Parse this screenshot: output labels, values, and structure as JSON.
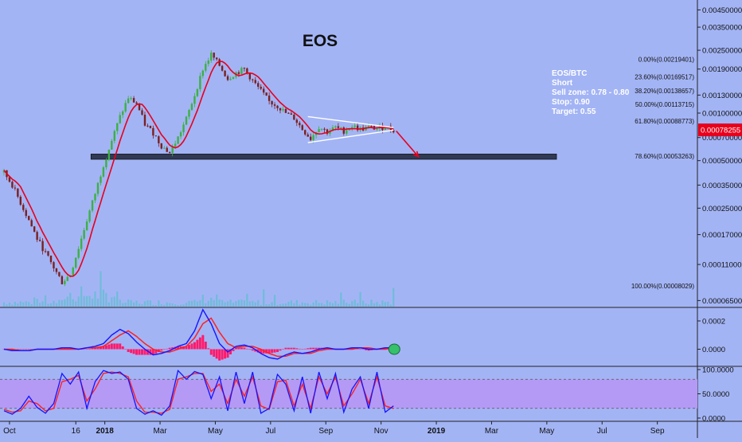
{
  "colors": {
    "background": "#a3b4f5",
    "candle_up": "#3cb043",
    "candle_down": "#7a2020",
    "ma_line": "#e8001c",
    "triangle_line": "#ffffff",
    "support_zone": "#303a54",
    "target_arrow": "#e8001c",
    "volume": "#5fbfcf",
    "macd_line": "#1414ff",
    "signal_line": "#ff2020",
    "histogram": "#ff1a6a",
    "stoch_band": "#b49af5",
    "stoch_k": "#1414ff",
    "stoch_d": "#ff2020",
    "highlight_circle": "#35c06a",
    "price_badge": "#e8001c"
  },
  "chart_data": [
    {
      "type": "candlestick",
      "title": "EOS",
      "symbol": "EOS/BTC",
      "scale": "log",
      "annotation": {
        "lines": [
          "EOS/BTC",
          "Short",
          "Sell zone: 0.78 - 0.80",
          "Stop: 0.90",
          "Target: 0.55"
        ]
      },
      "current_price": "0.00078255",
      "y_tick_labels": [
        "0.00450000",
        "0.00350000",
        "0.00250000",
        "0.00190000",
        "0.00130000",
        "0.00100000",
        "0.00070000",
        "0.00050000",
        "0.00035000",
        "0.00025000",
        "0.00017000",
        "0.00011000",
        "0.00006500"
      ],
      "y_tick_values": [
        0.0045,
        0.0035,
        0.0025,
        0.0019,
        0.0013,
        0.001,
        0.0007,
        0.0005,
        0.00035,
        0.00025,
        0.00017,
        0.00011,
        6.5e-05
      ],
      "x_tick_labels": [
        "Oct",
        "16",
        "2018",
        "Mar",
        "May",
        "Jul",
        "Sep",
        "Nov",
        "2019",
        "Mar",
        "May",
        "Jul",
        "Sep"
      ],
      "x_tick_bold": [
        false,
        false,
        true,
        false,
        false,
        false,
        false,
        false,
        true,
        false,
        false,
        false,
        false
      ],
      "x_tick_months": [
        0.2,
        2.6,
        3.65,
        5.65,
        7.65,
        9.65,
        11.65,
        13.65,
        15.65,
        17.65,
        19.65,
        21.65,
        23.65
      ],
      "fib_levels": [
        {
          "label": "0.00%(0.00219401)",
          "value": 0.00219401
        },
        {
          "label": "23.60%(0.00169517)",
          "value": 0.00169517
        },
        {
          "label": "38.20%(0.00138657)",
          "value": 0.00138657
        },
        {
          "label": "50.00%(0.00113715)",
          "value": 0.00113715
        },
        {
          "label": "61.80%(0.00088773)",
          "value": 0.00088773
        },
        {
          "label": "78.60%(0.00053263)",
          "value": 0.00053263
        },
        {
          "label": "100.00%(0.00008029)",
          "value": 8.029e-05
        }
      ],
      "support_zone": {
        "from_month": 3.15,
        "to_month": 20.0,
        "low": 0.00051,
        "high": 0.00055
      },
      "triangle": {
        "upper": [
          [
            11.0,
            0.00095
          ],
          [
            14.1,
            0.00081
          ]
        ],
        "lower": [
          [
            11.0,
            0.00065
          ],
          [
            14.1,
            0.00078
          ]
        ]
      },
      "target_arrow": [
        [
          14.2,
          0.00077
        ],
        [
          15.0,
          0.00053
        ]
      ],
      "price_path": {
        "months": [
          0,
          0.3,
          0.6,
          0.9,
          1.2,
          1.5,
          1.8,
          2.1,
          2.4,
          2.7,
          3.0,
          3.3,
          3.6,
          3.9,
          4.2,
          4.5,
          4.8,
          5.1,
          5.4,
          5.7,
          6.0,
          6.3,
          6.6,
          6.9,
          7.2,
          7.5,
          7.8,
          8.1,
          8.4,
          8.7,
          9.0,
          9.3,
          9.6,
          9.9,
          10.2,
          10.5,
          10.8,
          11.1,
          11.4,
          11.7,
          12.0,
          12.3,
          12.6,
          12.9,
          13.2,
          13.5,
          13.8,
          14.1
        ],
        "close": [
          0.00042,
          0.00035,
          0.00027,
          0.00021,
          0.00016,
          0.00013,
          0.000105,
          8.5e-05,
          9.5e-05,
          0.00014,
          0.00021,
          0.00031,
          0.00047,
          0.00067,
          0.00095,
          0.00125,
          0.00115,
          0.00085,
          0.00075,
          0.00062,
          0.00056,
          0.0007,
          0.00092,
          0.0013,
          0.0019,
          0.00235,
          0.002,
          0.00165,
          0.0018,
          0.0019,
          0.0016,
          0.00138,
          0.00118,
          0.00111,
          0.001,
          0.00093,
          0.00079,
          0.00069,
          0.00082,
          0.00076,
          0.00081,
          0.00077,
          0.00083,
          0.00079,
          0.00081,
          0.0008,
          0.00082,
          0.00078
        ]
      }
    },
    {
      "type": "line",
      "name": "MACD",
      "y_tick_labels": [
        "0.0002",
        "0.0000"
      ],
      "y_tick_values": [
        0.0002,
        0.0
      ],
      "ylim": [
        -0.00011,
        0.00029
      ],
      "months": [
        0,
        0.3,
        0.6,
        0.9,
        1.2,
        1.5,
        1.8,
        2.1,
        2.4,
        2.7,
        3.0,
        3.3,
        3.6,
        3.9,
        4.2,
        4.5,
        4.8,
        5.1,
        5.4,
        5.7,
        6.0,
        6.3,
        6.6,
        6.9,
        7.2,
        7.5,
        7.8,
        8.1,
        8.4,
        8.7,
        9.0,
        9.3,
        9.6,
        9.9,
        10.2,
        10.5,
        10.8,
        11.1,
        11.4,
        11.7,
        12.0,
        12.3,
        12.6,
        12.9,
        13.2,
        13.5,
        13.8,
        14.1
      ],
      "macd": [
        0.0,
        -1e-05,
        -1e-05,
        -1e-05,
        0.0,
        0.0,
        0.0,
        1e-05,
        1e-05,
        0.0,
        1e-05,
        2e-05,
        4e-05,
        0.0001,
        0.00014,
        0.00011,
        5e-05,
        0.0,
        -4e-05,
        -3e-05,
        -1e-05,
        2e-05,
        4e-05,
        0.00013,
        0.00028,
        0.00018,
        4e-05,
        -2e-05,
        2e-05,
        3e-05,
        1e-05,
        -3e-05,
        -6e-05,
        -7e-05,
        -4e-05,
        -2e-05,
        -3e-05,
        -2e-05,
        0.0,
        1e-05,
        0.0,
        0.0,
        1e-05,
        1e-05,
        0.0,
        0.0,
        1e-05,
        1e-05
      ],
      "signal": [
        0.0,
        0.0,
        -1e-05,
        -1e-05,
        0.0,
        0.0,
        0.0,
        0.0,
        0.0,
        0.0,
        1e-05,
        1e-05,
        2e-05,
        6e-05,
        0.0001,
        0.00013,
        9e-05,
        4e-05,
        0.0,
        -2e-05,
        -2e-05,
        0.0,
        2e-05,
        8e-05,
        0.00018,
        0.00022,
        0.00012,
        4e-05,
        1e-05,
        2e-05,
        2e-05,
        0.0,
        -3e-05,
        -5e-05,
        -5e-05,
        -3e-05,
        -3e-05,
        -3e-05,
        -1e-05,
        0.0,
        0.0,
        0.0,
        0.0,
        1e-05,
        1e-05,
        0.0,
        0.0,
        1e-05
      ]
    },
    {
      "type": "line",
      "name": "Stochastic",
      "y_tick_labels": [
        "100.0000",
        "50.0000",
        "0.0000"
      ],
      "y_tick_values": [
        100,
        50,
        0
      ],
      "ylim": [
        -5,
        105
      ],
      "band": [
        20,
        80
      ],
      "months": [
        0,
        0.3,
        0.6,
        0.9,
        1.2,
        1.5,
        1.8,
        2.1,
        2.4,
        2.7,
        3.0,
        3.3,
        3.6,
        3.9,
        4.2,
        4.5,
        4.8,
        5.1,
        5.4,
        5.7,
        6.0,
        6.3,
        6.6,
        6.9,
        7.2,
        7.5,
        7.8,
        8.1,
        8.4,
        8.7,
        9.0,
        9.3,
        9.6,
        9.9,
        10.2,
        10.5,
        10.8,
        11.1,
        11.4,
        11.7,
        12.0,
        12.3,
        12.6,
        12.9,
        13.2,
        13.5,
        13.8,
        14.1
      ],
      "k": [
        15,
        8,
        20,
        45,
        22,
        10,
        30,
        92,
        70,
        95,
        20,
        75,
        98,
        92,
        95,
        80,
        20,
        8,
        15,
        6,
        25,
        98,
        80,
        96,
        90,
        40,
        85,
        15,
        95,
        30,
        95,
        10,
        20,
        90,
        70,
        15,
        85,
        10,
        95,
        40,
        92,
        12,
        60,
        85,
        20,
        95,
        12,
        25
      ],
      "d": [
        18,
        12,
        15,
        35,
        30,
        15,
        20,
        75,
        80,
        88,
        35,
        60,
        92,
        95,
        92,
        85,
        35,
        12,
        12,
        10,
        18,
        80,
        85,
        92,
        92,
        55,
        70,
        30,
        80,
        45,
        85,
        25,
        18,
        75,
        78,
        25,
        70,
        20,
        85,
        50,
        85,
        25,
        50,
        80,
        30,
        85,
        25,
        20
      ]
    }
  ]
}
